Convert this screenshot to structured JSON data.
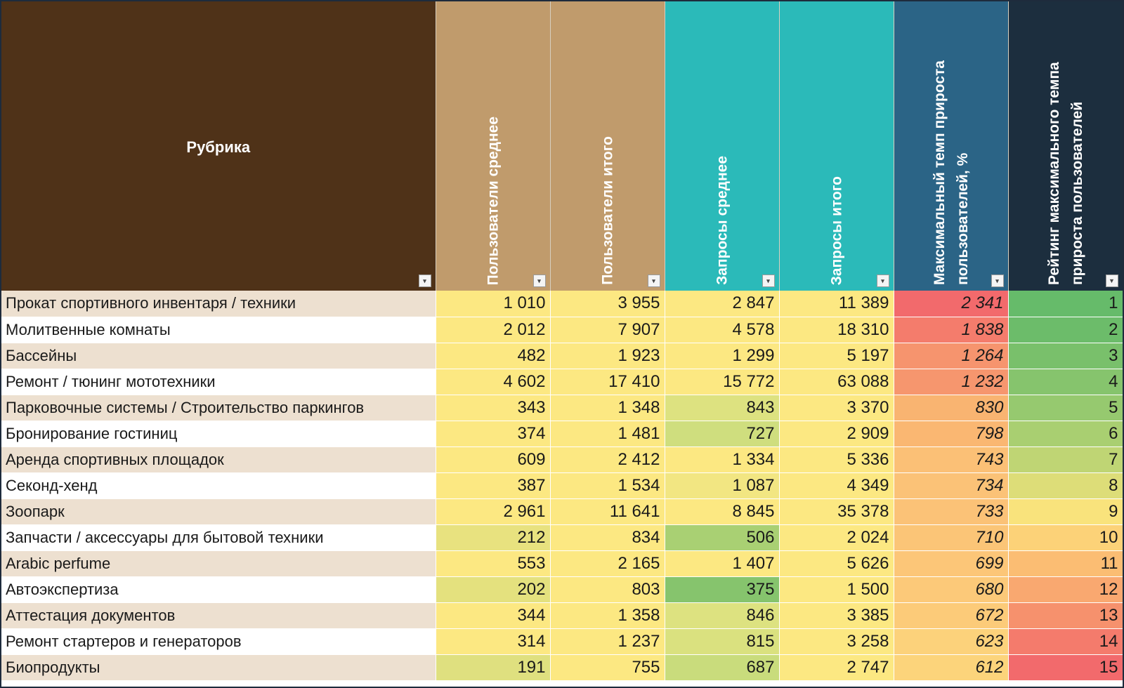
{
  "headers": {
    "rubric": "Рубрика",
    "users_avg": "Пользователи среднее",
    "users_total": "Пользователи итого",
    "requests_avg": "Запросы среднее",
    "requests_total": "Запросы итого",
    "max_growth": "Максимальный темп прироста пользователей, %",
    "rating": "Рейтинг максимального темпа прироста пользователей"
  },
  "header_colors": {
    "rubric": "#4f3218",
    "users": "#c09b6c",
    "requests": "#2bbab9",
    "max_growth": "#2b6486",
    "rating": "#1c2e3e"
  },
  "filter_icons": {
    "default": "▾",
    "active": "▼"
  },
  "rows": [
    {
      "name": "Прокат спортивного инвентаря / техники",
      "users_avg": "1 010",
      "users_total": "3 955",
      "requests_avg": "2 847",
      "requests_total": "11 389",
      "max_growth": "2 341",
      "rating": "1",
      "colors": {
        "users_avg": "#fce882",
        "users_total": "#fce882",
        "requests_avg": "#fce882",
        "requests_total": "#fce882",
        "max_growth": "#f26a6c",
        "rating": "#66bb6a"
      }
    },
    {
      "name": "Молитвенные комнаты",
      "users_avg": "2 012",
      "users_total": "7 907",
      "requests_avg": "4 578",
      "requests_total": "18 310",
      "max_growth": "1 838",
      "rating": "2",
      "colors": {
        "users_avg": "#fce882",
        "users_total": "#fce882",
        "requests_avg": "#fce882",
        "requests_total": "#fce882",
        "max_growth": "#f47c6c",
        "rating": "#6cbc6a"
      }
    },
    {
      "name": "Бассейны",
      "users_avg": "482",
      "users_total": "1 923",
      "requests_avg": "1 299",
      "requests_total": "5 197",
      "max_growth": "1 264",
      "rating": "3",
      "colors": {
        "users_avg": "#fce882",
        "users_total": "#fce882",
        "requests_avg": "#fce882",
        "requests_total": "#fce882",
        "max_growth": "#f6946e",
        "rating": "#79c06b"
      }
    },
    {
      "name": "Ремонт / тюнинг мототехники",
      "users_avg": "4 602",
      "users_total": "17 410",
      "requests_avg": "15 772",
      "requests_total": "63 088",
      "max_growth": "1 232",
      "rating": "4",
      "colors": {
        "users_avg": "#fce882",
        "users_total": "#fce882",
        "requests_avg": "#fce882",
        "requests_total": "#fce882",
        "max_growth": "#f6966e",
        "rating": "#86c46d"
      }
    },
    {
      "name": "Парковочные системы / Строительство паркингов",
      "users_avg": "343",
      "users_total": "1 348",
      "requests_avg": "843",
      "requests_total": "3 370",
      "max_growth": "830",
      "rating": "5",
      "colors": {
        "users_avg": "#fce882",
        "users_total": "#fce882",
        "requests_avg": "#dde280",
        "requests_total": "#fce882",
        "max_growth": "#f9b471",
        "rating": "#96c96f"
      }
    },
    {
      "name": "Бронирование гостиниц",
      "users_avg": "374",
      "users_total": "1 481",
      "requests_avg": "727",
      "requests_total": "2 909",
      "max_growth": "798",
      "rating": "6",
      "colors": {
        "users_avg": "#fce882",
        "users_total": "#fce882",
        "requests_avg": "#cfde7e",
        "requests_total": "#fce882",
        "max_growth": "#fab772",
        "rating": "#a9cf71"
      }
    },
    {
      "name": "Аренда спортивных площадок",
      "users_avg": "609",
      "users_total": "2 412",
      "requests_avg": "1 334",
      "requests_total": "5 336",
      "max_growth": "743",
      "rating": "7",
      "colors": {
        "users_avg": "#fce882",
        "users_total": "#fce882",
        "requests_avg": "#fce882",
        "requests_total": "#fce882",
        "max_growth": "#fbc076",
        "rating": "#bfd574"
      }
    },
    {
      "name": "Секонд-хенд",
      "users_avg": "387",
      "users_total": "1 534",
      "requests_avg": "1 087",
      "requests_total": "4 349",
      "max_growth": "734",
      "rating": "8",
      "colors": {
        "users_avg": "#fce882",
        "users_total": "#fce882",
        "requests_avg": "#f2e682",
        "requests_total": "#fce882",
        "max_growth": "#fbc277",
        "rating": "#dddd78"
      }
    },
    {
      "name": "Зоопарк",
      "users_avg": "2 961",
      "users_total": "11 641",
      "requests_avg": "8 845",
      "requests_total": "35 378",
      "max_growth": "733",
      "rating": "9",
      "colors": {
        "users_avg": "#fce882",
        "users_total": "#fce882",
        "requests_avg": "#fce882",
        "requests_total": "#fce882",
        "max_growth": "#fbc277",
        "rating": "#f9e37c"
      }
    },
    {
      "name": "Запчасти / аксессуары для бытовой техники",
      "users_avg": "212",
      "users_total": "834",
      "requests_avg": "506",
      "requests_total": "2 024",
      "max_growth": "710",
      "rating": "10",
      "colors": {
        "users_avg": "#e8e27f",
        "users_total": "#fce882",
        "requests_avg": "#a9d073",
        "requests_total": "#fce882",
        "max_growth": "#fbc577",
        "rating": "#fcd278"
      }
    },
    {
      "name": "Arabic perfume",
      "users_avg": "553",
      "users_total": "2 165",
      "requests_avg": "1 407",
      "requests_total": "5 626",
      "max_growth": "699",
      "rating": "11",
      "colors": {
        "users_avg": "#fce882",
        "users_total": "#fce882",
        "requests_avg": "#fce882",
        "requests_total": "#fce882",
        "max_growth": "#fcc678",
        "rating": "#fbbd73"
      }
    },
    {
      "name": "Автоэкспертиза",
      "users_avg": "202",
      "users_total": "803",
      "requests_avg": "375",
      "requests_total": "1 500",
      "max_growth": "680",
      "rating": "12",
      "colors": {
        "users_avg": "#e4e17e",
        "users_total": "#fce882",
        "requests_avg": "#86c46d",
        "requests_total": "#fce882",
        "max_growth": "#fcc979",
        "rating": "#f9a870"
      }
    },
    {
      "name": "Аттестация документов",
      "users_avg": "344",
      "users_total": "1 358",
      "requests_avg": "846",
      "requests_total": "3 385",
      "max_growth": "672",
      "rating": "13",
      "colors": {
        "users_avg": "#fce882",
        "users_total": "#fce882",
        "requests_avg": "#dde280",
        "requests_total": "#fce882",
        "max_growth": "#fccb79",
        "rating": "#f6916d"
      }
    },
    {
      "name": "Ремонт стартеров и генераторов",
      "users_avg": "314",
      "users_total": "1 237",
      "requests_avg": "815",
      "requests_total": "3 258",
      "max_growth": "623",
      "rating": "14",
      "colors": {
        "users_avg": "#fce882",
        "users_total": "#fce882",
        "requests_avg": "#dae17f",
        "requests_total": "#fce882",
        "max_growth": "#fcd27b",
        "rating": "#f47b6c"
      }
    },
    {
      "name": "Биопродукты",
      "users_avg": "191",
      "users_total": "755",
      "requests_avg": "687",
      "requests_total": "2 747",
      "max_growth": "612",
      "rating": "15",
      "colors": {
        "users_avg": "#dfe07f",
        "users_total": "#fce882",
        "requests_avg": "#c9dc7c",
        "requests_total": "#fce882",
        "max_growth": "#fcd47b",
        "rating": "#f26a6c"
      }
    }
  ]
}
